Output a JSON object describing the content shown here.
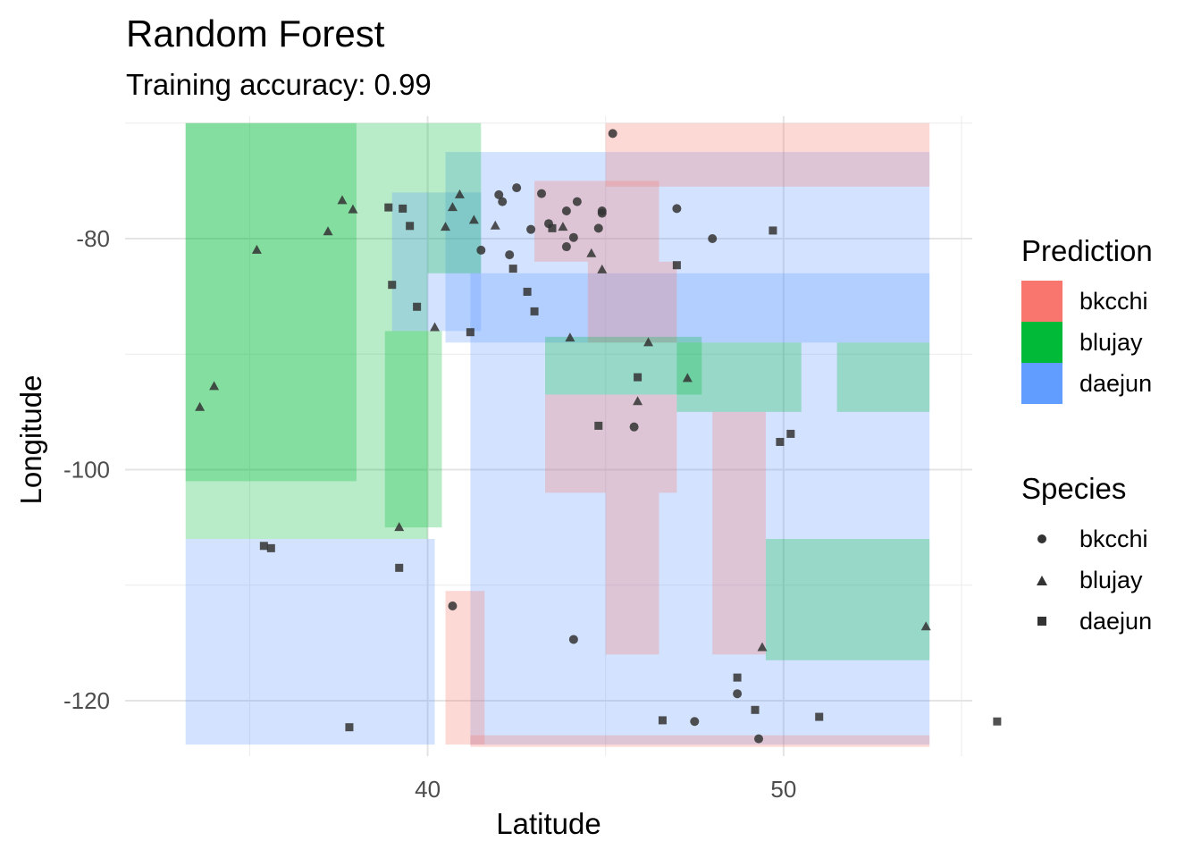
{
  "title": "Random Forest",
  "subtitle": "Training accuracy: 0.99",
  "chart_data": {
    "type": "scatter",
    "title": "Random Forest",
    "subtitle": "Training accuracy: 0.99",
    "xlabel": "Latitude",
    "ylabel": "Longitude",
    "xlim": [
      31.5,
      55.3
    ],
    "ylim": [
      -124.8,
      -69.4
    ],
    "x_ticks": [
      40,
      50
    ],
    "x_tick_labels": [
      "40",
      "50"
    ],
    "y_ticks": [
      -80,
      -100,
      -120
    ],
    "y_tick_labels": [
      "-80",
      "-100",
      "-120"
    ],
    "grid": true,
    "legend_position": "right",
    "legends": {
      "prediction": {
        "title": "Prediction",
        "items": [
          {
            "label": "bkcchi",
            "color": "#F8766D"
          },
          {
            "label": "blujay",
            "color": "#00BA38"
          },
          {
            "label": "daejun",
            "color": "#619CFF"
          }
        ]
      },
      "species": {
        "title": "Species",
        "items": [
          {
            "label": "bkcchi",
            "shape": "circle"
          },
          {
            "label": "blujay",
            "shape": "triangle"
          },
          {
            "label": "daejun",
            "shape": "square"
          }
        ]
      }
    },
    "decision_regions": [
      {
        "class": "blujay",
        "lat": [
          33.2,
          40.0
        ],
        "lon": [
          -70.0,
          -106.0
        ]
      },
      {
        "class": "blujay",
        "lat": [
          33.2,
          38.0
        ],
        "lon": [
          -70.0,
          -101.0
        ]
      },
      {
        "class": "daejun",
        "lat": [
          33.2,
          40.2
        ],
        "lon": [
          -106.0,
          -123.8
        ]
      },
      {
        "class": "daejun",
        "lat": [
          39.0,
          41.5
        ],
        "lon": [
          -76.0,
          -88.0
        ]
      },
      {
        "class": "daejun",
        "lat": [
          40.5,
          57.0
        ],
        "lon": [
          -72.5,
          -89.0
        ]
      },
      {
        "class": "blujay",
        "lat": [
          38.8,
          40.4
        ],
        "lon": [
          -88.0,
          -105.0
        ]
      },
      {
        "class": "blujay",
        "lat": [
          40.0,
          41.5
        ],
        "lon": [
          -70.0,
          -83.0
        ]
      },
      {
        "class": "daejun",
        "lat": [
          41.2,
          56.0
        ],
        "lon": [
          -83.0,
          -123.8
        ]
      },
      {
        "class": "bkcchi",
        "lat": [
          45.0,
          57.0
        ],
        "lon": [
          -70.0,
          -75.5
        ]
      },
      {
        "class": "bkcchi",
        "lat": [
          43.0,
          46.5
        ],
        "lon": [
          -75.0,
          -82.0
        ]
      },
      {
        "class": "bkcchi",
        "lat": [
          44.5,
          47.0
        ],
        "lon": [
          -82.0,
          -89.0
        ]
      },
      {
        "class": "bkcchi",
        "lat": [
          43.3,
          47.0
        ],
        "lon": [
          -93.5,
          -102.0
        ]
      },
      {
        "class": "bkcchi",
        "lat": [
          45.0,
          46.5
        ],
        "lon": [
          -102.0,
          -116.0
        ]
      },
      {
        "class": "blujay",
        "lat": [
          43.3,
          47.7
        ],
        "lon": [
          -88.5,
          -93.5
        ]
      },
      {
        "class": "blujay",
        "lat": [
          47.0,
          50.5
        ],
        "lon": [
          -89.0,
          -95.0
        ]
      },
      {
        "class": "bkcchi",
        "lat": [
          48.0,
          49.5
        ],
        "lon": [
          -95.0,
          -116.0
        ]
      },
      {
        "class": "blujay",
        "lat": [
          51.5,
          57.0
        ],
        "lon": [
          -89.0,
          -95.0
        ]
      },
      {
        "class": "blujay",
        "lat": [
          49.5,
          57.0
        ],
        "lon": [
          -106.0,
          -116.5
        ]
      },
      {
        "class": "bkcchi",
        "lat": [
          40.5,
          41.6
        ],
        "lon": [
          -110.5,
          -123.8
        ]
      },
      {
        "class": "bkcchi",
        "lat": [
          41.2,
          57.0
        ],
        "lon": [
          -123.0,
          -124.2
        ]
      }
    ],
    "series": [
      {
        "name": "bkcchi",
        "shape": "circle",
        "points": [
          [
            45.2,
            -70.9
          ],
          [
            44.2,
            -76.8
          ],
          [
            43.9,
            -77.6
          ],
          [
            44.9,
            -77.6
          ],
          [
            47.0,
            -77.4
          ],
          [
            42.5,
            -75.6
          ],
          [
            43.2,
            -76.1
          ],
          [
            42.1,
            -76.8
          ],
          [
            42.0,
            -76.2
          ],
          [
            42.9,
            -79.2
          ],
          [
            43.4,
            -78.7
          ],
          [
            44.8,
            -79.1
          ],
          [
            42.3,
            -81.4
          ],
          [
            43.9,
            -80.7
          ],
          [
            41.5,
            -81.0
          ],
          [
            44.1,
            -79.9
          ],
          [
            45.8,
            -96.3
          ],
          [
            44.1,
            -114.7
          ],
          [
            40.7,
            -111.8
          ],
          [
            48.7,
            -119.4
          ],
          [
            49.3,
            -123.3
          ],
          [
            47.5,
            -121.8
          ],
          [
            44.9,
            -77.8
          ],
          [
            48.0,
            -80.0
          ]
        ]
      },
      {
        "name": "blujay",
        "shape": "triangle",
        "points": [
          [
            33.6,
            -94.6
          ],
          [
            34.0,
            -92.8
          ],
          [
            35.2,
            -81.0
          ],
          [
            37.2,
            -79.4
          ],
          [
            37.6,
            -76.7
          ],
          [
            37.9,
            -77.5
          ],
          [
            39.2,
            -105.0
          ],
          [
            40.9,
            -76.2
          ],
          [
            40.7,
            -77.3
          ],
          [
            41.3,
            -78.4
          ],
          [
            41.9,
            -78.9
          ],
          [
            40.2,
            -87.7
          ],
          [
            44.6,
            -81.3
          ],
          [
            44.0,
            -88.6
          ],
          [
            46.2,
            -89.0
          ],
          [
            47.3,
            -92.1
          ],
          [
            45.9,
            -94.1
          ],
          [
            54.0,
            -113.6
          ],
          [
            49.4,
            -115.4
          ],
          [
            44.9,
            -82.7
          ],
          [
            40.5,
            -79.0
          ],
          [
            43.8,
            -79.0
          ]
        ]
      },
      {
        "name": "daejun",
        "shape": "square",
        "points": [
          [
            38.9,
            -77.3
          ],
          [
            39.3,
            -77.4
          ],
          [
            39.7,
            -85.9
          ],
          [
            37.8,
            -122.3
          ],
          [
            35.4,
            -106.6
          ],
          [
            35.6,
            -106.8
          ],
          [
            39.2,
            -108.5
          ],
          [
            41.2,
            -88.1
          ],
          [
            42.4,
            -82.6
          ],
          [
            42.8,
            -84.6
          ],
          [
            43.0,
            -86.3
          ],
          [
            44.8,
            -96.2
          ],
          [
            45.9,
            -92.0
          ],
          [
            49.9,
            -97.6
          ],
          [
            50.2,
            -96.9
          ],
          [
            48.7,
            -118.0
          ],
          [
            49.2,
            -120.8
          ],
          [
            46.6,
            -121.7
          ],
          [
            51.0,
            -121.4
          ],
          [
            56.0,
            -121.8
          ],
          [
            43.5,
            -79.1
          ],
          [
            39.5,
            -78.9
          ],
          [
            47.0,
            -82.3
          ],
          [
            49.7,
            -79.3
          ],
          [
            39.0,
            -84.0
          ]
        ]
      }
    ]
  },
  "axes": {
    "xlabel": "Latitude",
    "ylabel": "Longitude",
    "x_tick_labels": [
      "40",
      "50"
    ],
    "y_tick_labels": [
      "-80",
      "-100",
      "-120"
    ]
  },
  "legend_prediction": {
    "title": "Prediction",
    "items": [
      {
        "label": "bkcchi",
        "color": "#F8766D"
      },
      {
        "label": "blujay",
        "color": "#00BA38"
      },
      {
        "label": "daejun",
        "color": "#619CFF"
      }
    ]
  },
  "legend_species": {
    "title": "Species",
    "items": [
      {
        "label": "bkcchi",
        "shape": "circle"
      },
      {
        "label": "blujay",
        "shape": "triangle"
      },
      {
        "label": "daejun",
        "shape": "square"
      }
    ]
  }
}
